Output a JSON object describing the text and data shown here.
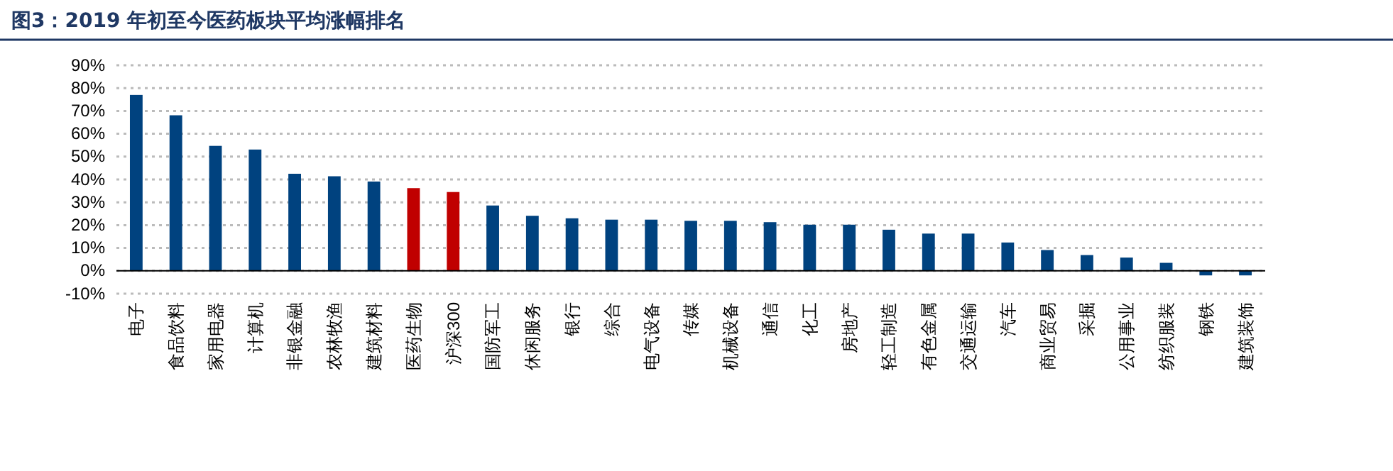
{
  "chart_data": {
    "type": "bar",
    "title": "图3：2019 年初至今医药板块平均涨幅排名",
    "categories": [
      "电子",
      "食品饮料",
      "家用电器",
      "计算机",
      "非银金融",
      "农林牧渔",
      "建筑材料",
      "医药生物",
      "沪深300",
      "国防军工",
      "休闲服务",
      "银行",
      "综合",
      "电气设备",
      "传媒",
      "机械设备",
      "通信",
      "化工",
      "房地产",
      "轻工制造",
      "有色金属",
      "交通运输",
      "汽车",
      "商业贸易",
      "采掘",
      "公用事业",
      "纺织服装",
      "钢铁",
      "建筑装饰"
    ],
    "values": [
      77.0,
      68.1,
      54.7,
      53.1,
      42.5,
      41.4,
      39.1,
      36.2,
      34.5,
      28.6,
      24.1,
      23.0,
      22.4,
      22.4,
      21.9,
      21.9,
      21.3,
      20.2,
      20.2,
      18.0,
      16.3,
      16.3,
      12.4,
      9.1,
      6.9,
      5.8,
      3.5,
      -2,
      -2
    ],
    "colors": [
      "#00427f",
      "#00427f",
      "#00427f",
      "#00427f",
      "#00427f",
      "#00427f",
      "#00427f",
      "#c00000",
      "#c00000",
      "#00427f",
      "#00427f",
      "#00427f",
      "#00427f",
      "#00427f",
      "#00427f",
      "#00427f",
      "#00427f",
      "#00427f",
      "#00427f",
      "#00427f",
      "#00427f",
      "#00427f",
      "#00427f",
      "#00427f",
      "#00427f",
      "#00427f",
      "#00427f",
      "#00427f",
      "#00427f"
    ],
    "ylim": [
      -10,
      90
    ],
    "yticks": [
      {
        "value": -10,
        "label": "-10%"
      },
      {
        "value": 0,
        "label": "0%"
      },
      {
        "value": 10,
        "label": "10%"
      },
      {
        "value": 20,
        "label": "20%"
      },
      {
        "value": 30,
        "label": "30%"
      },
      {
        "value": 40,
        "label": "40%"
      },
      {
        "value": 50,
        "label": "50%"
      },
      {
        "value": 60,
        "label": "60%"
      },
      {
        "value": 70,
        "label": "70%"
      },
      {
        "value": 80,
        "label": "80%"
      },
      {
        "value": 90,
        "label": "90%"
      }
    ],
    "grid": "y"
  }
}
